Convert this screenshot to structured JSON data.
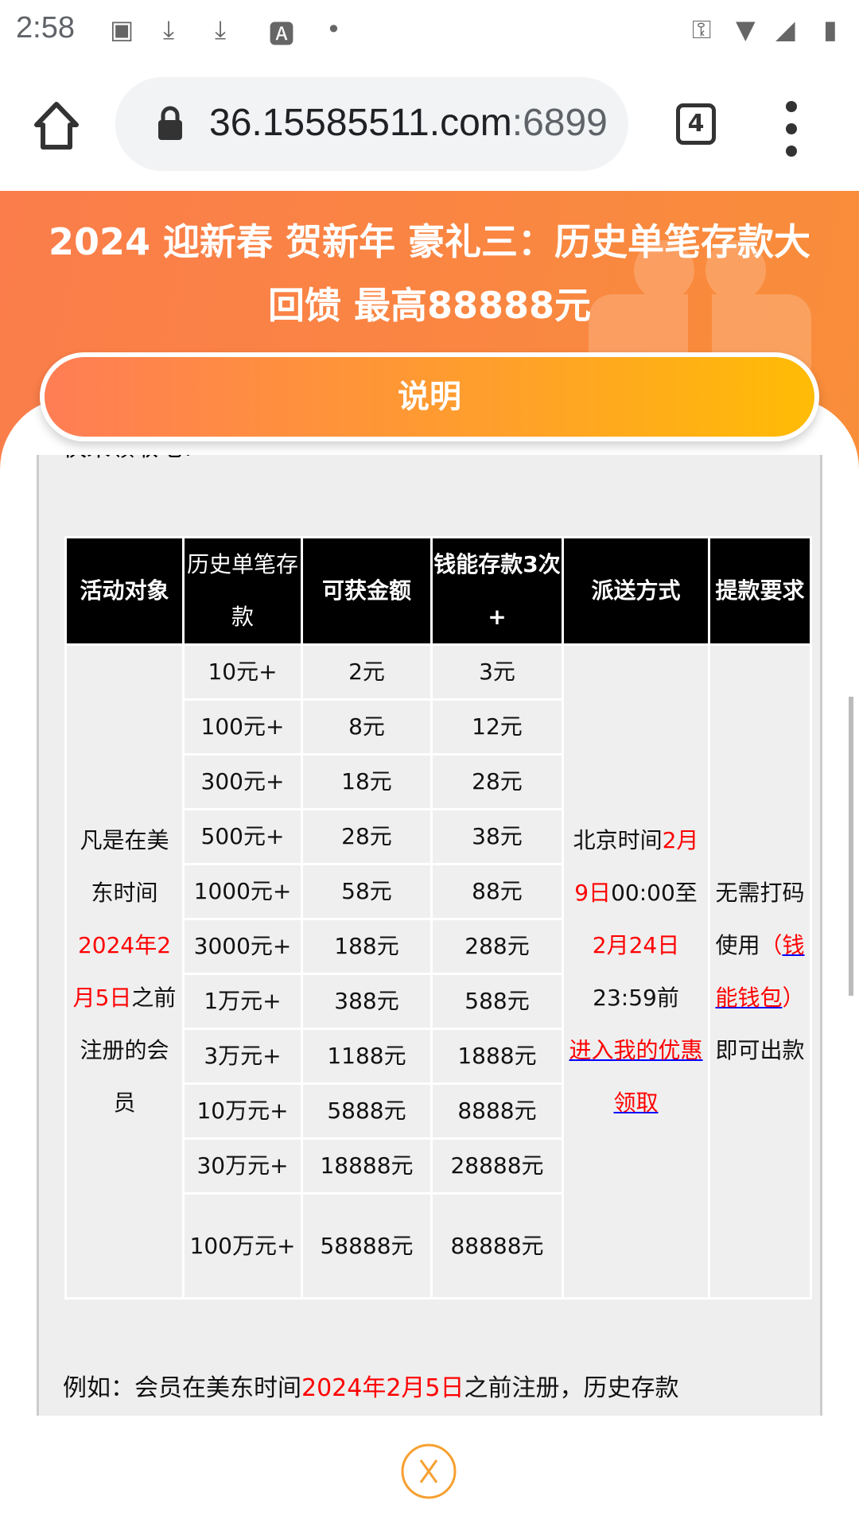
{
  "status_bar": {
    "time": "2:58",
    "icons": [
      "image-icon",
      "download-icon",
      "download-icon",
      "font-icon",
      "dot-icon",
      "vpn-key-icon",
      "wifi-icon",
      "signal-icon",
      "battery-charging-icon"
    ]
  },
  "browser": {
    "url_host": "36.15585511.com",
    "url_port": ":6899",
    "tab_count": "4"
  },
  "hero": {
    "title": "2024 迎新春 贺新年 豪礼三：历史单笔存款大回馈 最高88888元",
    "button": "说明"
  },
  "content": {
    "cut_text": "快来领取吧！",
    "table": {
      "headers": [
        "活动对象",
        "历史单笔存款",
        "可获金额",
        "钱能存款3次+",
        "派送方式",
        "提款要求"
      ],
      "rows": [
        [
          "10元+",
          "2元",
          "3元"
        ],
        [
          "100元+",
          "8元",
          "12元"
        ],
        [
          "300元+",
          "18元",
          "28元"
        ],
        [
          "500元+",
          "28元",
          "38元"
        ],
        [
          "1000元+",
          "58元",
          "88元"
        ],
        [
          "3000元+",
          "188元",
          "288元"
        ],
        [
          "1万元+",
          "388元",
          "588元"
        ],
        [
          "3万元+",
          "1188元",
          "1888元"
        ],
        [
          "10万元+",
          "5888元",
          "8888元"
        ],
        [
          "30万元+",
          "18888元",
          "28888元"
        ],
        [
          "100万元+",
          "58888元",
          "88888元"
        ]
      ],
      "target": {
        "a": "凡是在美东时间",
        "b": "2024年2月5日",
        "c": "之前注册的会员"
      },
      "delivery": {
        "a": "北京时间",
        "b": "2月9日",
        "c": "00:00至",
        "d": "2月24日",
        "e": "23:59前",
        "link": "进入我的优惠领取"
      },
      "withdraw": {
        "a": "无需打码使用",
        "b": "（",
        "link": "钱能钱包",
        "c": "）",
        "d": "即可出款"
      }
    },
    "example": {
      "a": "例如：会员在美东时间",
      "b": "2024年2月5日",
      "c": "之前注册，历史存款"
    }
  },
  "colors": {
    "accent": "#f98e3a",
    "highlight": "#ff0000",
    "close": "#f7a030"
  }
}
